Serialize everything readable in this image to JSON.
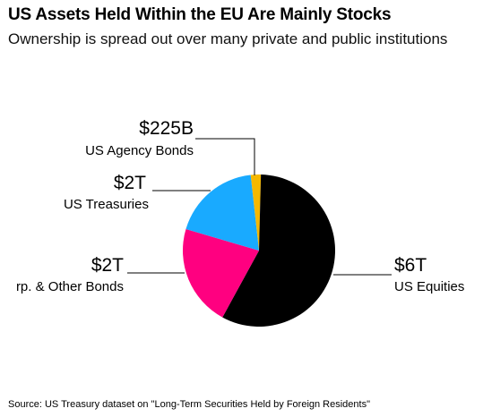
{
  "title": "US Assets Held Within the EU Are Mainly Stocks",
  "subtitle": "Ownership is spread out over many private and public institutions",
  "source": "Source: US Treasury dataset on \"Long-Term Securities Held by Foreign Residents\"",
  "chart_data": {
    "type": "pie",
    "title": "US Assets Held Within the EU Are Mainly Stocks",
    "slices": [
      {
        "label": "US Agency Bonds",
        "value_label": "$225B",
        "value": 0.225,
        "color": "#f5b800"
      },
      {
        "label": "US Equities",
        "value_label": "$6T",
        "value": 6.0,
        "color": "#000000"
      },
      {
        "label": "rp. & Other Bonds",
        "value_label": "$2T",
        "value": 2.25,
        "color": "#ff0080"
      },
      {
        "label": "US Treasuries",
        "value_label": "$2T",
        "value": 1.95,
        "color": "#19aaff"
      }
    ],
    "units": "USD trillions"
  }
}
